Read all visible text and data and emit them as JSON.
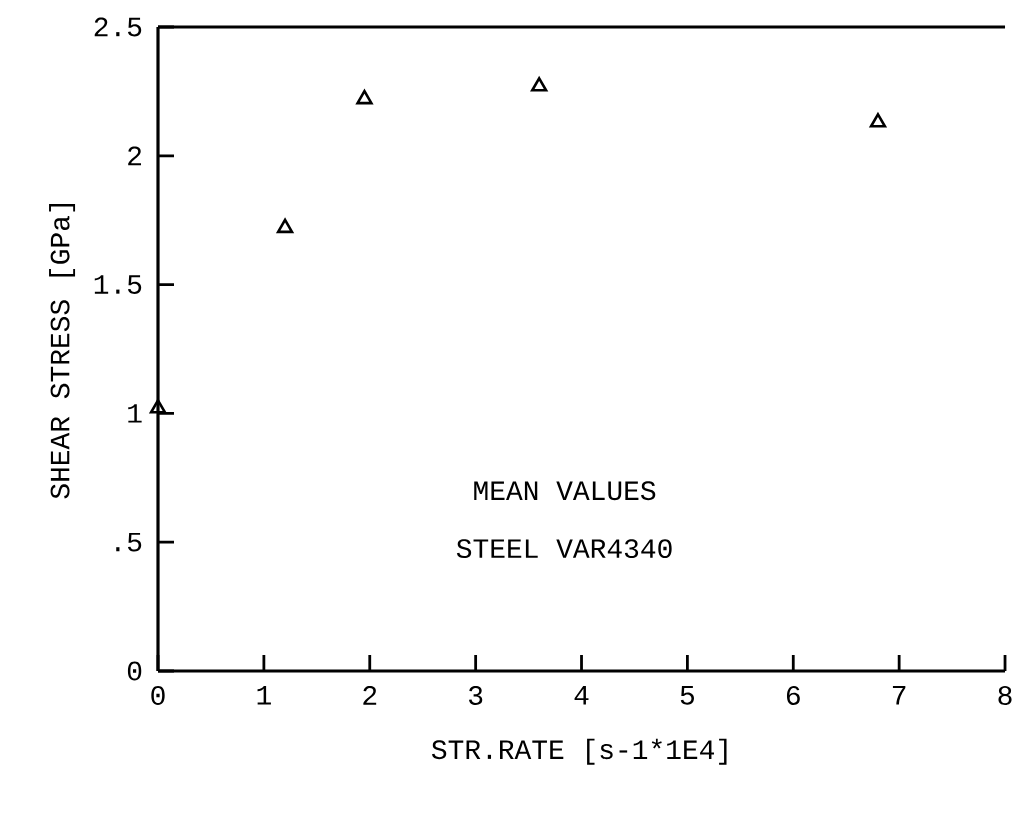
{
  "chart_data": {
    "type": "scatter",
    "xlabel": "STR.RATE [s-1*1E4]",
    "ylabel": "SHEAR STRESS [GPa]",
    "x": [
      0,
      1.2,
      1.95,
      3.6,
      6.8
    ],
    "values": [
      1.02,
      1.72,
      2.22,
      2.27,
      2.13
    ],
    "color": "#000000",
    "marker": "triangle",
    "xlim": [
      0,
      8
    ],
    "xticks": [
      0,
      1,
      2,
      3,
      4,
      5,
      6,
      7,
      8
    ],
    "ylim": [
      0,
      2.5
    ],
    "yticks": [
      0,
      {
        "value": 0.5,
        "label": ".5"
      },
      1,
      1.5,
      2,
      2.5
    ],
    "annotations": [
      "MEAN VALUES",
      "STEEL VAR4340"
    ],
    "grid": false
  }
}
